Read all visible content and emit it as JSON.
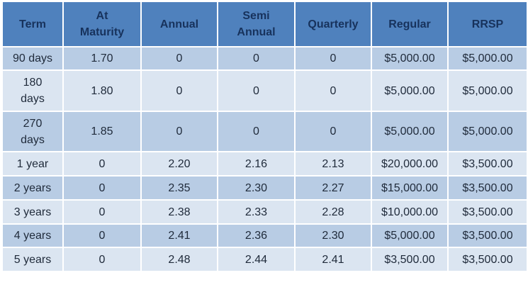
{
  "table": {
    "header": [
      "Term",
      "At Maturity",
      "Annual",
      "Semi Annual",
      "Quarterly",
      "Regular",
      "RRSP"
    ],
    "rows": [
      [
        "90 days",
        "1.70",
        "0",
        "0",
        "0",
        "$5,000.00",
        "$5,000.00"
      ],
      [
        "180 days",
        "1.80",
        "0",
        "0",
        "0",
        "$5,000.00",
        "$5,000.00"
      ],
      [
        "270 days",
        "1.85",
        "0",
        "0",
        "0",
        "$5,000.00",
        "$5,000.00"
      ],
      [
        "1 year",
        "0",
        "2.20",
        "2.16",
        "2.13",
        "$20,000.00",
        "$3,500.00"
      ],
      [
        "2 years",
        "0",
        "2.35",
        "2.30",
        "2.27",
        "$15,000.00",
        "$3,500.00"
      ],
      [
        "3 years",
        "0",
        "2.38",
        "2.33",
        "2.28",
        "$10,000.00",
        "$3,500.00"
      ],
      [
        "4 years",
        "0",
        "2.41",
        "2.36",
        "2.30",
        "$5,000.00",
        "$3,500.00"
      ],
      [
        "5 years",
        "0",
        "2.48",
        "2.44",
        "2.41",
        "$3,500.00",
        "$3,500.00"
      ]
    ]
  }
}
